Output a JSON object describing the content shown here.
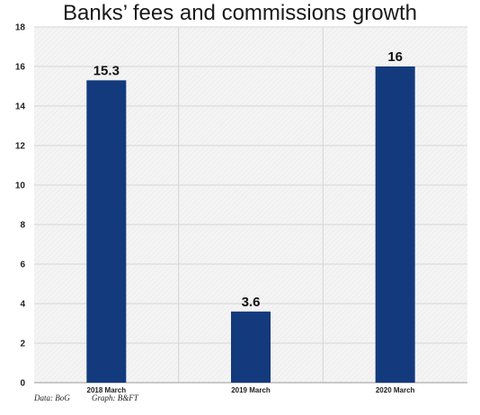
{
  "chart_data": {
    "type": "bar",
    "title": "Banks’ fees and commissions growth",
    "categories": [
      "2018 March",
      "2019 March",
      "2020 March"
    ],
    "values": [
      15.3,
      3.6,
      16
    ],
    "data_labels": [
      "15.3",
      "3.6",
      "16"
    ],
    "ylim": [
      0,
      18
    ],
    "yticks": [
      0,
      2,
      4,
      6,
      8,
      10,
      12,
      14,
      16,
      18
    ],
    "xlabel": "",
    "ylabel": "",
    "grid": true,
    "legend": "none",
    "colors": {
      "bar": "#133a7c",
      "grid": "#d6d6d6",
      "plot_bg": "#f3f3f3"
    }
  },
  "footer": {
    "data_source": "Data: BoG",
    "graph_source": "Graph: B&FT"
  }
}
